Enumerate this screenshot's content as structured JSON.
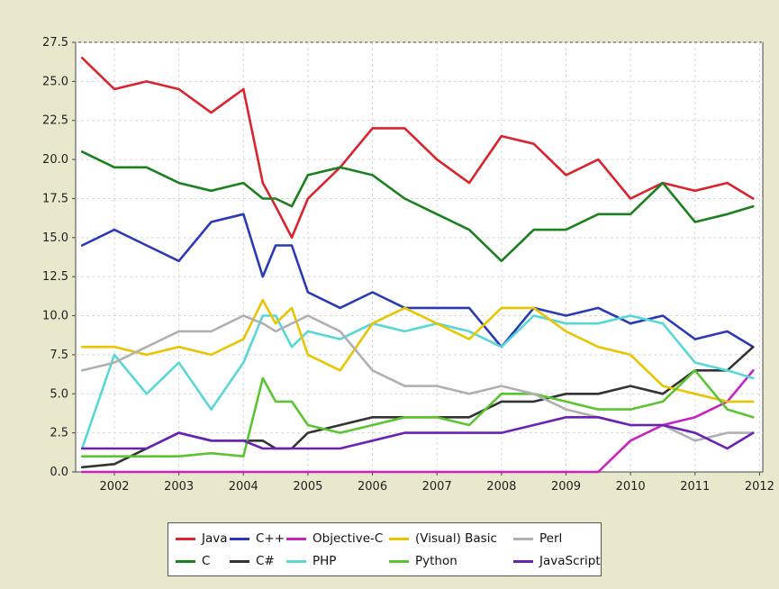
{
  "chart_data": {
    "type": "line",
    "title": "",
    "xlabel": "",
    "ylabel": "",
    "xlim": [
      2001.4,
      2012.05
    ],
    "ylim": [
      0,
      27.5
    ],
    "grid": true,
    "legend_position": "bottom",
    "x_ticks": [
      2002,
      2003,
      2004,
      2005,
      2006,
      2007,
      2008,
      2009,
      2010,
      2011,
      2012
    ],
    "y_ticks": [
      "0.0",
      "2.5",
      "5.0",
      "7.5",
      "10.0",
      "12.5",
      "15.0",
      "17.5",
      "20.0",
      "22.5",
      "25.0",
      "27.5"
    ],
    "x": [
      2001.5,
      2002.0,
      2002.5,
      2003.0,
      2003.5,
      2004.0,
      2004.3,
      2004.5,
      2004.75,
      2005.0,
      2005.5,
      2006.0,
      2006.5,
      2007.0,
      2007.5,
      2008.0,
      2008.5,
      2009.0,
      2009.5,
      2010.0,
      2010.5,
      2011.0,
      2011.5,
      2011.9
    ],
    "series": [
      {
        "name": "Java",
        "color": "#d9232d",
        "values": [
          26.5,
          24.5,
          25.0,
          24.5,
          23.0,
          24.5,
          18.5,
          17.0,
          15.0,
          17.5,
          19.5,
          22.0,
          22.0,
          20.0,
          18.5,
          21.5,
          21.0,
          19.0,
          20.0,
          17.5,
          18.5,
          18.0,
          18.5,
          17.5
        ]
      },
      {
        "name": "C",
        "color": "#1b801e",
        "values": [
          20.5,
          19.5,
          19.5,
          18.5,
          18.0,
          18.5,
          17.5,
          17.5,
          17.0,
          19.0,
          19.5,
          19.0,
          17.5,
          16.5,
          15.5,
          13.5,
          15.5,
          15.5,
          16.5,
          16.5,
          18.5,
          16.0,
          16.5,
          17.0
        ]
      },
      {
        "name": "C++",
        "color": "#2a3ab5",
        "values": [
          14.5,
          15.5,
          14.5,
          13.5,
          16.0,
          16.5,
          12.5,
          14.5,
          14.5,
          11.5,
          10.5,
          11.5,
          10.5,
          10.5,
          10.5,
          8.0,
          10.5,
          10.0,
          10.5,
          9.5,
          10.0,
          8.5,
          9.0,
          8.0
        ]
      },
      {
        "name": "C#",
        "color": "#333333",
        "values": [
          0.3,
          0.5,
          1.5,
          2.5,
          2.0,
          2.0,
          2.0,
          1.5,
          1.5,
          2.5,
          3.0,
          3.5,
          3.5,
          3.5,
          3.5,
          4.5,
          4.5,
          5.0,
          5.0,
          5.5,
          5.0,
          6.5,
          6.5,
          8.0
        ]
      },
      {
        "name": "Objective-C",
        "color": "#c822c0",
        "values": [
          0.0,
          0.0,
          0.0,
          0.0,
          0.0,
          0.0,
          0.0,
          0.0,
          0.0,
          0.0,
          0.0,
          0.0,
          0.0,
          0.0,
          0.0,
          0.0,
          0.0,
          0.0,
          0.0,
          2.0,
          3.0,
          3.5,
          4.5,
          6.5
        ]
      },
      {
        "name": "PHP",
        "color": "#58d7d7",
        "values": [
          1.5,
          7.5,
          5.0,
          7.0,
          4.0,
          7.0,
          10.0,
          10.0,
          8.0,
          9.0,
          8.5,
          9.5,
          9.0,
          9.5,
          9.0,
          8.0,
          10.0,
          9.5,
          9.5,
          10.0,
          9.5,
          7.0,
          6.5,
          6.0
        ]
      },
      {
        "name": "(Visual) Basic",
        "color": "#e8c500",
        "values": [
          8.0,
          8.0,
          7.5,
          8.0,
          7.5,
          8.5,
          11.0,
          9.5,
          10.5,
          7.5,
          6.5,
          9.5,
          10.5,
          9.5,
          8.5,
          10.5,
          10.5,
          9.0,
          8.0,
          7.5,
          5.5,
          5.0,
          4.5,
          4.5
        ]
      },
      {
        "name": "Python",
        "color": "#5ac531",
        "values": [
          1.0,
          1.0,
          1.0,
          1.0,
          1.2,
          1.0,
          6.0,
          4.5,
          4.5,
          3.0,
          2.5,
          3.0,
          3.5,
          3.5,
          3.0,
          5.0,
          5.0,
          4.5,
          4.0,
          4.0,
          4.5,
          6.5,
          4.0,
          3.5
        ]
      },
      {
        "name": "Perl",
        "color": "#b0b0b0",
        "values": [
          6.5,
          7.0,
          8.0,
          9.0,
          9.0,
          10.0,
          9.5,
          9.0,
          9.5,
          10.0,
          9.0,
          6.5,
          5.5,
          5.5,
          5.0,
          5.5,
          5.0,
          4.0,
          3.5,
          3.0,
          3.0,
          2.0,
          2.5,
          2.5
        ]
      },
      {
        "name": "JavaScript",
        "color": "#6a22b5",
        "values": [
          1.5,
          1.5,
          1.5,
          2.5,
          2.0,
          2.0,
          1.5,
          1.5,
          1.5,
          1.5,
          1.5,
          2.0,
          2.5,
          2.5,
          2.5,
          2.5,
          3.0,
          3.5,
          3.5,
          3.0,
          3.0,
          2.5,
          1.5,
          2.5
        ]
      }
    ]
  },
  "legend": {
    "row1": [
      {
        "label": "Java",
        "color": "#d9232d"
      },
      {
        "label": "C++",
        "color": "#2a3ab5"
      },
      {
        "label": "Objective-C",
        "color": "#c822c0"
      },
      {
        "label": "(Visual) Basic",
        "color": "#e8c500"
      },
      {
        "label": "Perl",
        "color": "#b0b0b0"
      }
    ],
    "row2": [
      {
        "label": "C",
        "color": "#1b801e"
      },
      {
        "label": "C#",
        "color": "#333333"
      },
      {
        "label": "PHP",
        "color": "#58d7d7"
      },
      {
        "label": "Python",
        "color": "#5ac531"
      },
      {
        "label": "JavaScript",
        "color": "#6a22b5"
      }
    ]
  }
}
